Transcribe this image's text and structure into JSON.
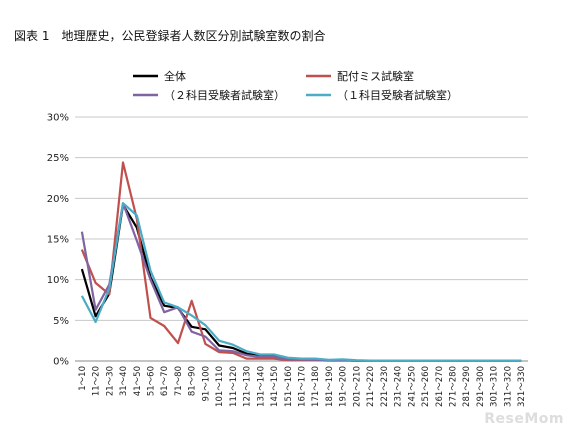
{
  "title": "図表 1　地理歴史，公民登録者人数区分別試験室数の割合",
  "logo": "ReseMom",
  "chart_data": {
    "type": "line",
    "title": "図表 1　地理歴史，公民登録者人数区分別試験室数の割合",
    "xlabel": "",
    "ylabel": "",
    "ylim": [
      0,
      30
    ],
    "yticks": [
      "0%",
      "5%",
      "10%",
      "15%",
      "20%",
      "25%",
      "30%"
    ],
    "grid": "horizontal",
    "legend_position": "top",
    "categories": [
      "1～10",
      "11～20",
      "21～30",
      "31～40",
      "41～50",
      "51～60",
      "61～70",
      "71～80",
      "81～90",
      "91～100",
      "101～110",
      "111～120",
      "121～130",
      "131～140",
      "141～150",
      "151～160",
      "161～170",
      "171～180",
      "181～190",
      "191～200",
      "201～210",
      "211～220",
      "221～230",
      "231～240",
      "241～250",
      "251～260",
      "261～270",
      "271～280",
      "281～290",
      "291～300",
      "301～310",
      "311～320",
      "321～330"
    ],
    "series": [
      {
        "name": "全体",
        "color": "#000000",
        "values": [
          11.3,
          5.5,
          8.3,
          19.2,
          16.4,
          10.3,
          6.8,
          6.5,
          4.2,
          3.9,
          1.9,
          1.6,
          0.9,
          0.6,
          0.6,
          0.3,
          0.2,
          0.2,
          0.1,
          0.1,
          0.05,
          0.05,
          0.05,
          0.05,
          0.05,
          0.05,
          0.05,
          0.05,
          0.05,
          0.05,
          0.05,
          0.05,
          0.05
        ]
      },
      {
        "name": "配付ミス試験室",
        "color": "#c0504d",
        "values": [
          13.7,
          9.6,
          8.2,
          24.4,
          17.5,
          5.3,
          4.3,
          2.2,
          7.4,
          2.1,
          1.1,
          1.0,
          0.3,
          0.3,
          0.3,
          0.1,
          0.1,
          0.1,
          0.05,
          0.05,
          0.05,
          0.05,
          0.05,
          0.05,
          0.05,
          0.05,
          0.05,
          0.05,
          0.05,
          0.05,
          0.05,
          0.05,
          0.05
        ]
      },
      {
        "name": "（２科目受験者試験室）",
        "color": "#8064a2",
        "values": [
          15.9,
          6.3,
          9.4,
          19.4,
          14.8,
          10.0,
          6.0,
          6.6,
          3.6,
          3.0,
          1.3,
          1.2,
          0.7,
          0.5,
          0.5,
          0.2,
          0.2,
          0.15,
          0.1,
          0.1,
          0.05,
          0.05,
          0.05,
          0.05,
          0.05,
          0.05,
          0.05,
          0.05,
          0.05,
          0.05,
          0.05,
          0.05,
          0.05
        ]
      },
      {
        "name": "（１科目受験者試験室）",
        "color": "#4bacc6",
        "values": [
          8.0,
          4.8,
          8.9,
          19.4,
          17.9,
          11.1,
          7.2,
          6.6,
          5.6,
          4.4,
          2.5,
          2.0,
          1.2,
          0.8,
          0.8,
          0.4,
          0.3,
          0.3,
          0.15,
          0.2,
          0.1,
          0.05,
          0.05,
          0.05,
          0.05,
          0.05,
          0.05,
          0.05,
          0.05,
          0.05,
          0.05,
          0.05,
          0.05
        ]
      }
    ]
  }
}
